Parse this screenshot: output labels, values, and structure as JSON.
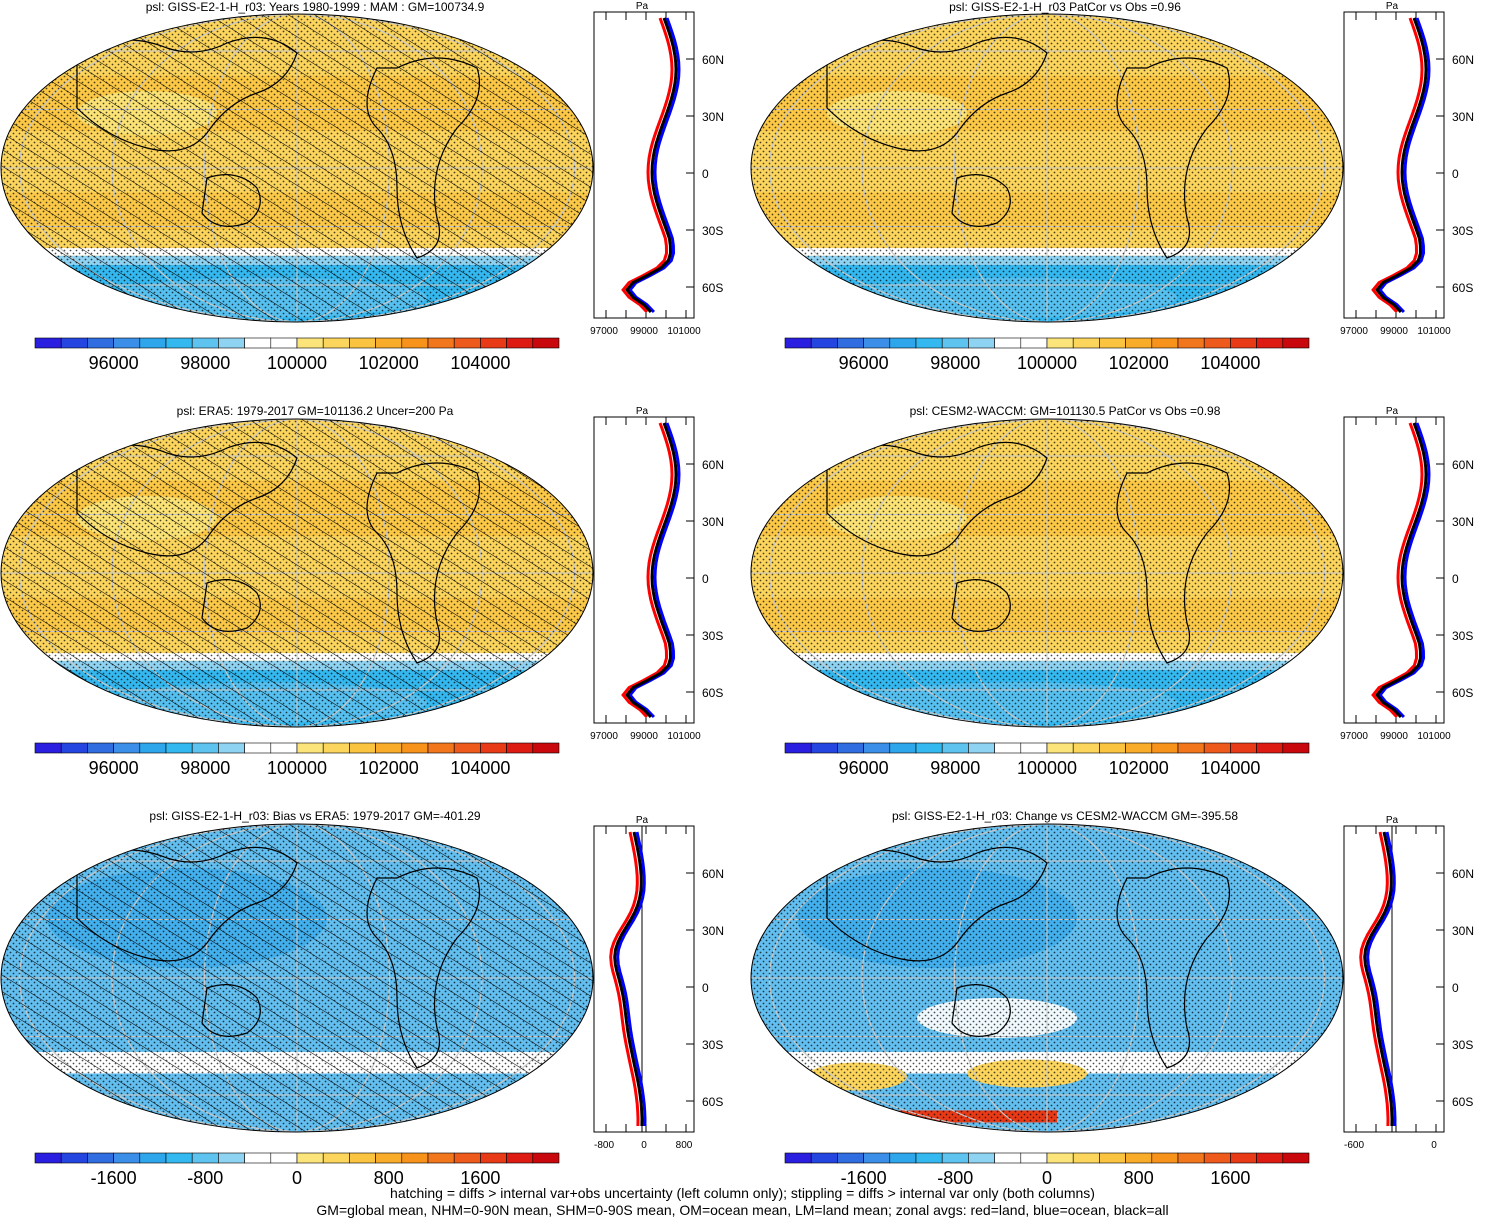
{
  "colors": {
    "blues": [
      "#2a1fe0",
      "#2545e0",
      "#2f6de0",
      "#3b8fe8",
      "#2ea6ec",
      "#34b8f0",
      "#5fc3f0",
      "#8fd3f2"
    ],
    "white": "#ffffff",
    "yellows": [
      "#fbe57a",
      "#fcd55c",
      "#fbc440",
      "#f9ac2a",
      "#f7921b",
      "#f2761c",
      "#ee5a1c",
      "#e83a17",
      "#de1b12",
      "#c8080c"
    ],
    "map_base_mean": "#fcd55c",
    "map_base_bias": "#62bff0",
    "profile_land": "#ff0000",
    "profile_ocean": "#0000ff",
    "profile_all": "#000000"
  },
  "panels": [
    {
      "title": "psl: GISS-E2-1-H_r03: Years 1980-1999 : MAM : GM=100734.9",
      "kind": "mean",
      "hatched": true
    },
    {
      "title": "psl: GISS-E2-1-H_r03 PatCor vs Obs =0.96",
      "kind": "mean",
      "hatched": false
    },
    {
      "title": "psl: ERA5: 1979-2017 GM=101136.2 Uncer=200 Pa",
      "kind": "mean",
      "hatched": true
    },
    {
      "title": "psl: CESM2-WACCM: GM=101130.5 PatCor vs Obs =0.98",
      "kind": "mean",
      "hatched": false
    },
    {
      "title": "psl: GISS-E2-1-H_r03: Bias vs ERA5: 1979-2017 GM=-401.29",
      "kind": "bias",
      "hatched": true
    },
    {
      "title": "psl: GISS-E2-1-H_r03: Change vs CESM2-WACCM GM=-395.58",
      "kind": "bias",
      "hatched": false
    }
  ],
  "colorbars": {
    "mean_labels": [
      "96000",
      "98000",
      "100000",
      "102000",
      "104000"
    ],
    "bias_labels": [
      "-1600",
      "-800",
      "0",
      "800",
      "1600"
    ]
  },
  "profiles": {
    "unit": "Pa",
    "lat_labels": [
      "60N",
      "30N",
      "0",
      "30S",
      "60S"
    ],
    "mean_x_labels": [
      "97000",
      "99000",
      "101000"
    ],
    "bias_left_x_labels": [
      "-800",
      "0",
      "800"
    ],
    "bias_right_x_labels": [
      "-600",
      "0"
    ]
  },
  "footer": {
    "line1": "hatching = diffs > internal var+obs uncertainty (left column only); stippling = diffs > internal var only (both columns)",
    "line2": "GM=global mean, NHM=0-90N mean, SHM=0-90S mean, OM=ocean mean, LM=land mean; zonal avgs: red=land, blue=ocean, black=all"
  }
}
